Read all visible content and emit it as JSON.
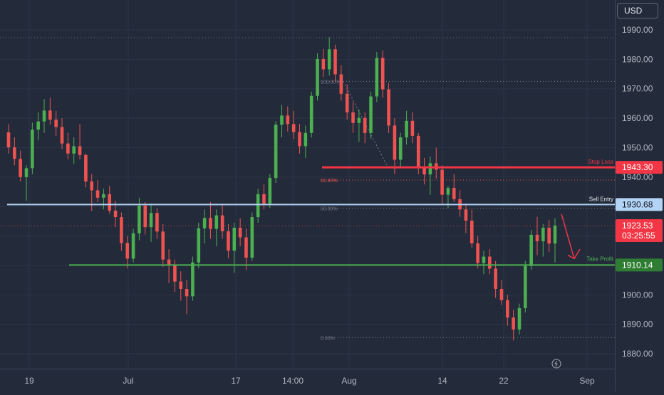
{
  "currency": "USD",
  "chart_data": {
    "type": "candlestick",
    "symbol_currency": "USD",
    "ylim": [
      1875,
      1996
    ],
    "y_ticks": [
      1880,
      1890,
      1900,
      1910,
      1920,
      1930,
      1940,
      1950,
      1960,
      1970,
      1980,
      1990
    ],
    "y_tick_labels": [
      "1880.00",
      "1890.00",
      "1900.00",
      "1910.00",
      "1920.00",
      "1930.00",
      "1940.00",
      "1950.00",
      "1960.00",
      "1970.00",
      "1980.00",
      "1990.00"
    ],
    "x_tick_labels": [
      "19",
      "Jul",
      "17",
      "14:00",
      "Aug",
      "14",
      "22",
      "Sep"
    ],
    "colors": {
      "background": "#232b3b",
      "up": "#26a69a",
      "up_body": "#4caf50",
      "down": "#ef5350",
      "sell_entry": "#b3d4f5",
      "stop_loss": "#f23645",
      "take_profit": "#4caf50",
      "last_price": "#f23645"
    },
    "levels": {
      "stop_loss": {
        "label": "Stop Loss",
        "value": 1943.3,
        "value_label": "1943.30"
      },
      "sell_entry": {
        "label": "Sell Entry",
        "value": 1930.68,
        "value_label": "1930.68"
      },
      "take_profit": {
        "label": "Take Profit",
        "value": 1910.14,
        "value_label": "1910.14"
      }
    },
    "last_price": {
      "value": 1923.53,
      "value_label": "1923.53",
      "countdown": "03:25:55"
    },
    "fibonacci": [
      {
        "label": "100.00%",
        "value": 1972.5
      },
      {
        "label": "61.80%",
        "value": 1939.0
      },
      {
        "label": "50.00%",
        "value": 1929.4
      },
      {
        "label": "0.00%",
        "value": 1885.5
      }
    ],
    "prior_high": 1987.5,
    "ohlc": [
      [
        1955.2,
        1958.0,
        1948.0,
        1950.1
      ],
      [
        1950.1,
        1953.5,
        1944.0,
        1946.2
      ],
      [
        1946.2,
        1949.0,
        1938.5,
        1940.0
      ],
      [
        1940.0,
        1944.0,
        1932.0,
        1943.0
      ],
      [
        1943.0,
        1958.5,
        1941.0,
        1956.1
      ],
      [
        1956.1,
        1962.0,
        1952.5,
        1958.9
      ],
      [
        1958.9,
        1966.5,
        1955.0,
        1962.6
      ],
      [
        1962.6,
        1967.0,
        1957.8,
        1959.5
      ],
      [
        1959.5,
        1962.5,
        1954.0,
        1957.0
      ],
      [
        1957.0,
        1960.0,
        1949.5,
        1951.4
      ],
      [
        1951.4,
        1955.0,
        1946.0,
        1948.0
      ],
      [
        1948.0,
        1953.5,
        1944.5,
        1950.5
      ],
      [
        1950.5,
        1958.0,
        1946.0,
        1947.5
      ],
      [
        1947.5,
        1948.0,
        1936.5,
        1938.5
      ],
      [
        1938.5,
        1941.0,
        1928.5,
        1935.5
      ],
      [
        1935.5,
        1939.0,
        1931.5,
        1933.0
      ],
      [
        1933.0,
        1936.0,
        1929.0,
        1934.2
      ],
      [
        1934.2,
        1937.0,
        1927.5,
        1928.6
      ],
      [
        1928.6,
        1932.0,
        1923.0,
        1926.4
      ],
      [
        1926.4,
        1928.0,
        1915.0,
        1917.6
      ],
      [
        1917.6,
        1920.0,
        1909.0,
        1912.3
      ],
      [
        1912.3,
        1922.5,
        1911.0,
        1920.9
      ],
      [
        1920.9,
        1933.0,
        1918.5,
        1930.3
      ],
      [
        1930.3,
        1931.5,
        1920.5,
        1923.0
      ],
      [
        1923.0,
        1931.0,
        1918.0,
        1927.8
      ],
      [
        1927.8,
        1929.5,
        1919.0,
        1921.5
      ],
      [
        1921.5,
        1924.0,
        1909.5,
        1912.0
      ],
      [
        1912.0,
        1915.5,
        1904.0,
        1910.0
      ],
      [
        1910.0,
        1912.0,
        1901.0,
        1904.5
      ],
      [
        1904.5,
        1908.0,
        1898.0,
        1902.0
      ],
      [
        1902.0,
        1905.0,
        1893.5,
        1899.5
      ],
      [
        1899.5,
        1913.0,
        1898.0,
        1911.0
      ],
      [
        1911.0,
        1924.5,
        1909.0,
        1922.6
      ],
      [
        1922.6,
        1929.0,
        1917.5,
        1926.1
      ],
      [
        1926.1,
        1931.5,
        1919.0,
        1922.4
      ],
      [
        1922.4,
        1929.0,
        1916.5,
        1927.0
      ],
      [
        1927.0,
        1931.0,
        1919.0,
        1921.6
      ],
      [
        1921.6,
        1924.0,
        1912.5,
        1915.0
      ],
      [
        1915.0,
        1924.5,
        1907.5,
        1922.8
      ],
      [
        1922.8,
        1926.0,
        1916.5,
        1919.5
      ],
      [
        1919.5,
        1922.5,
        1908.5,
        1912.6
      ],
      [
        1912.6,
        1928.0,
        1911.5,
        1926.4
      ],
      [
        1926.4,
        1936.0,
        1924.5,
        1934.2
      ],
      [
        1934.2,
        1937.5,
        1929.0,
        1931.0
      ],
      [
        1931.0,
        1941.0,
        1929.5,
        1939.7
      ],
      [
        1939.7,
        1959.0,
        1938.0,
        1957.8
      ],
      [
        1957.8,
        1964.5,
        1953.5,
        1960.9
      ],
      [
        1960.9,
        1964.0,
        1955.5,
        1958.0
      ],
      [
        1958.0,
        1962.5,
        1953.0,
        1955.3
      ],
      [
        1955.3,
        1958.0,
        1948.0,
        1950.5
      ],
      [
        1950.5,
        1957.5,
        1946.5,
        1955.0
      ],
      [
        1955.0,
        1969.0,
        1953.5,
        1967.6
      ],
      [
        1967.6,
        1982.0,
        1966.0,
        1980.1
      ],
      [
        1980.1,
        1983.5,
        1974.0,
        1976.6
      ],
      [
        1976.6,
        1987.5,
        1974.5,
        1983.4
      ],
      [
        1983.4,
        1985.0,
        1972.5,
        1974.9
      ],
      [
        1974.9,
        1978.0,
        1966.0,
        1968.3
      ],
      [
        1968.3,
        1971.5,
        1959.5,
        1962.0
      ],
      [
        1962.0,
        1965.5,
        1955.0,
        1958.4
      ],
      [
        1958.4,
        1963.0,
        1952.0,
        1960.1
      ],
      [
        1960.1,
        1962.0,
        1951.5,
        1955.0
      ],
      [
        1955.0,
        1969.0,
        1953.0,
        1967.4
      ],
      [
        1967.4,
        1982.5,
        1965.5,
        1980.5
      ],
      [
        1980.5,
        1983.0,
        1967.0,
        1969.8
      ],
      [
        1969.8,
        1972.0,
        1955.0,
        1957.5
      ],
      [
        1957.5,
        1960.0,
        1941.0,
        1945.9
      ],
      [
        1945.9,
        1955.0,
        1943.5,
        1953.5
      ],
      [
        1953.5,
        1962.5,
        1951.0,
        1959.1
      ],
      [
        1959.1,
        1962.0,
        1951.5,
        1954.0
      ],
      [
        1954.0,
        1955.0,
        1941.0,
        1943.4
      ],
      [
        1943.4,
        1946.5,
        1937.5,
        1940.9
      ],
      [
        1940.9,
        1947.0,
        1934.0,
        1944.7
      ],
      [
        1944.7,
        1950.0,
        1939.5,
        1942.5
      ],
      [
        1942.5,
        1944.0,
        1930.5,
        1934.0
      ],
      [
        1934.0,
        1937.0,
        1929.5,
        1936.3
      ],
      [
        1936.3,
        1941.0,
        1931.5,
        1932.5
      ],
      [
        1932.5,
        1935.5,
        1926.5,
        1929.0
      ],
      [
        1929.0,
        1931.0,
        1921.0,
        1925.2
      ],
      [
        1925.2,
        1929.0,
        1916.0,
        1917.5
      ],
      [
        1917.5,
        1920.0,
        1909.0,
        1910.8
      ],
      [
        1910.8,
        1915.0,
        1907.0,
        1913.0
      ],
      [
        1913.0,
        1915.5,
        1907.0,
        1908.9
      ],
      [
        1908.9,
        1911.5,
        1899.0,
        1902.0
      ],
      [
        1902.0,
        1905.0,
        1896.5,
        1898.2
      ],
      [
        1898.2,
        1900.0,
        1889.5,
        1892.3
      ],
      [
        1892.3,
        1895.0,
        1884.5,
        1888.2
      ],
      [
        1888.2,
        1897.0,
        1886.5,
        1895.5
      ],
      [
        1895.5,
        1911.5,
        1894.0,
        1909.8
      ],
      [
        1909.8,
        1922.0,
        1908.5,
        1920.4
      ],
      [
        1920.4,
        1926.5,
        1913.5,
        1918.2
      ],
      [
        1918.2,
        1924.0,
        1913.0,
        1922.8
      ],
      [
        1922.8,
        1925.5,
        1914.5,
        1917.4
      ],
      [
        1917.4,
        1926.0,
        1911.0,
        1923.53
      ]
    ]
  }
}
